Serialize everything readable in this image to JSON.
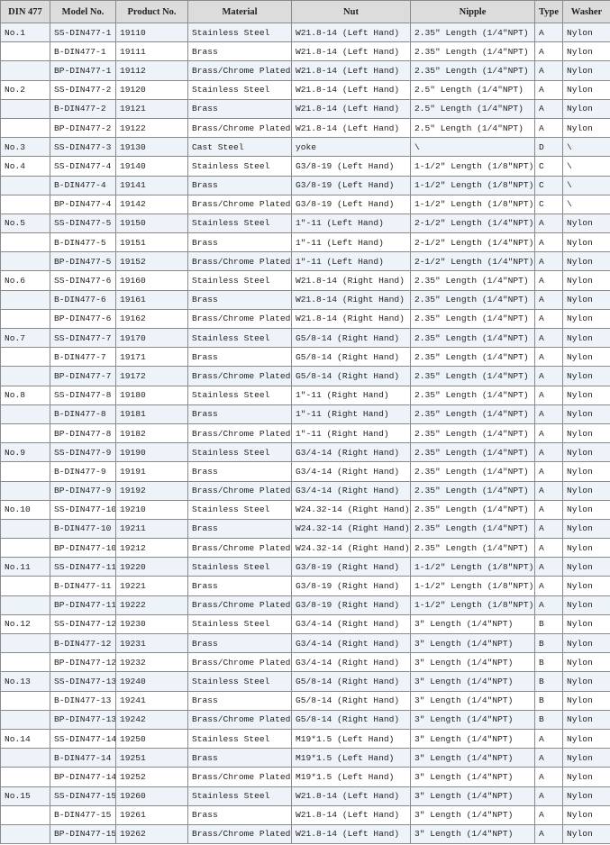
{
  "colors": {
    "header_bg": "#dcdcdc",
    "stripe_bg": "#eef3fa",
    "border": "#8a8a8a"
  },
  "table": {
    "headers": [
      "DIN 477",
      "Model No.",
      "Product No.",
      "Material",
      "Nut",
      "Nipple",
      "Type",
      "Washer"
    ],
    "rows": [
      [
        "No.1",
        "SS-DIN477-1",
        "19110",
        "Stainless Steel",
        "W21.8-14 (Left Hand)",
        "2.35\" Length (1/4\"NPT)",
        "A",
        "Nylon"
      ],
      [
        "",
        "B-DIN477-1",
        "19111",
        "Brass",
        "W21.8-14 (Left Hand)",
        "2.35\" Length (1/4\"NPT)",
        "A",
        "Nylon"
      ],
      [
        "",
        "BP-DIN477-1",
        "19112",
        "Brass/Chrome Plated",
        "W21.8-14 (Left Hand)",
        "2.35\" Length (1/4\"NPT)",
        "A",
        "Nylon"
      ],
      [
        "No.2",
        "SS-DIN477-2",
        "19120",
        "Stainless Steel",
        "W21.8-14 (Left Hand)",
        "2.5\" Length (1/4\"NPT)",
        "A",
        "Nylon"
      ],
      [
        "",
        "B-DIN477-2",
        "19121",
        "Brass",
        "W21.8-14 (Left Hand)",
        "2.5\" Length (1/4\"NPT)",
        "A",
        "Nylon"
      ],
      [
        "",
        "BP-DIN477-2",
        "19122",
        "Brass/Chrome Plated",
        "W21.8-14 (Left Hand)",
        "2.5\" Length (1/4\"NPT)",
        "A",
        "Nylon"
      ],
      [
        "No.3",
        "SS-DIN477-3",
        "19130",
        "Cast Steel",
        "yoke",
        "\\",
        "D",
        "\\"
      ],
      [
        "No.4",
        "SS-DIN477-4",
        "19140",
        "Stainless Steel",
        "G3/8-19 (Left Hand)",
        "1-1/2\" Length (1/8\"NPT)",
        "C",
        "\\"
      ],
      [
        "",
        "B-DIN477-4",
        "19141",
        "Brass",
        "G3/8-19 (Left Hand)",
        "1-1/2\" Length (1/8\"NPT)",
        "C",
        "\\"
      ],
      [
        "",
        "BP-DIN477-4",
        "19142",
        "Brass/Chrome Plated",
        "G3/8-19 (Left Hand)",
        "1-1/2\" Length (1/8\"NPT)",
        "C",
        "\\"
      ],
      [
        "No.5",
        "SS-DIN477-5",
        "19150",
        "Stainless Steel",
        "1\"-11 (Left Hand)",
        "2-1/2\" Length (1/4\"NPT)",
        "A",
        "Nylon"
      ],
      [
        "",
        "B-DIN477-5",
        "19151",
        "Brass",
        "1\"-11 (Left Hand)",
        "2-1/2\" Length (1/4\"NPT)",
        "A",
        "Nylon"
      ],
      [
        "",
        "BP-DIN477-5",
        "19152",
        "Brass/Chrome Plated",
        "1\"-11 (Left Hand)",
        "2-1/2\" Length (1/4\"NPT)",
        "A",
        "Nylon"
      ],
      [
        "No.6",
        "SS-DIN477-6",
        "19160",
        "Stainless Steel",
        "W21.8-14 (Right Hand)",
        "2.35\" Length (1/4\"NPT)",
        "A",
        "Nylon"
      ],
      [
        "",
        "B-DIN477-6",
        "19161",
        "Brass",
        "W21.8-14 (Right Hand)",
        "2.35\" Length (1/4\"NPT)",
        "A",
        "Nylon"
      ],
      [
        "",
        "BP-DIN477-6",
        "19162",
        "Brass/Chrome Plated",
        "W21.8-14 (Right Hand)",
        "2.35\" Length (1/4\"NPT)",
        "A",
        "Nylon"
      ],
      [
        "No.7",
        "SS-DIN477-7",
        "19170",
        "Stainless Steel",
        "G5/8-14 (Right Hand)",
        "2.35\" Length (1/4\"NPT)",
        "A",
        "Nylon"
      ],
      [
        "",
        "B-DIN477-7",
        "19171",
        "Brass",
        "G5/8-14 (Right Hand)",
        "2.35\" Length (1/4\"NPT)",
        "A",
        "Nylon"
      ],
      [
        "",
        "BP-DIN477-7",
        "19172",
        "Brass/Chrome Plated",
        "G5/8-14 (Right Hand)",
        "2.35\" Length (1/4\"NPT)",
        "A",
        "Nylon"
      ],
      [
        "No.8",
        "SS-DIN477-8",
        "19180",
        "Stainless Steel",
        "1\"-11 (Right Hand)",
        "2.35\" Length (1/4\"NPT)",
        "A",
        "Nylon"
      ],
      [
        "",
        "B-DIN477-8",
        "19181",
        "Brass",
        "1\"-11 (Right Hand)",
        "2.35\" Length (1/4\"NPT)",
        "A",
        "Nylon"
      ],
      [
        "",
        "BP-DIN477-8",
        "19182",
        "Brass/Chrome Plated",
        "1\"-11 (Right Hand)",
        "2.35\" Length (1/4\"NPT)",
        "A",
        "Nylon"
      ],
      [
        "No.9",
        "SS-DIN477-9",
        "19190",
        "Stainless Steel",
        "G3/4-14 (Right Hand)",
        "2.35\" Length (1/4\"NPT)",
        "A",
        "Nylon"
      ],
      [
        "",
        "B-DIN477-9",
        "19191",
        "Brass",
        "G3/4-14 (Right Hand)",
        "2.35\" Length (1/4\"NPT)",
        "A",
        "Nylon"
      ],
      [
        "",
        "BP-DIN477-9",
        "19192",
        "Brass/Chrome Plated",
        "G3/4-14 (Right Hand)",
        "2.35\" Length (1/4\"NPT)",
        "A",
        "Nylon"
      ],
      [
        "No.10",
        "SS-DIN477-10",
        "19210",
        "Stainless Steel",
        "W24.32-14 (Right Hand)",
        "2.35\" Length (1/4\"NPT)",
        "A",
        "Nylon"
      ],
      [
        "",
        "B-DIN477-10",
        "19211",
        "Brass",
        "W24.32-14 (Right Hand)",
        "2.35\" Length (1/4\"NPT)",
        "A",
        "Nylon"
      ],
      [
        "",
        "BP-DIN477-10",
        "19212",
        "Brass/Chrome Plated",
        "W24.32-14 (Right Hand)",
        "2.35\" Length (1/4\"NPT)",
        "A",
        "Nylon"
      ],
      [
        "No.11",
        "SS-DIN477-11",
        "19220",
        "Stainless Steel",
        "G3/8-19 (Right Hand)",
        "1-1/2\" Length (1/8\"NPT)",
        "A",
        "Nylon"
      ],
      [
        "",
        "B-DIN477-11",
        "19221",
        "Brass",
        "G3/8-19 (Right Hand)",
        "1-1/2\" Length (1/8\"NPT)",
        "A",
        "Nylon"
      ],
      [
        "",
        "BP-DIN477-11",
        "19222",
        "Brass/Chrome Plated",
        "G3/8-19 (Right Hand)",
        "1-1/2\" Length (1/8\"NPT)",
        "A",
        "Nylon"
      ],
      [
        "No.12",
        "SS-DIN477-12",
        "19230",
        "Stainless Steel",
        "G3/4-14 (Right Hand)",
        "3\" Length (1/4\"NPT)",
        "B",
        "Nylon"
      ],
      [
        "",
        "B-DIN477-12",
        "19231",
        "Brass",
        "G3/4-14 (Right Hand)",
        "3\" Length (1/4\"NPT)",
        "B",
        "Nylon"
      ],
      [
        "",
        "BP-DIN477-12",
        "19232",
        "Brass/Chrome Plated",
        "G3/4-14 (Right Hand)",
        "3\" Length (1/4\"NPT)",
        "B",
        "Nylon"
      ],
      [
        "No.13",
        "SS-DIN477-13",
        "19240",
        "Stainless Steel",
        "G5/8-14 (Right Hand)",
        "3\" Length (1/4\"NPT)",
        "B",
        "Nylon"
      ],
      [
        "",
        "B-DIN477-13",
        "19241",
        "Brass",
        "G5/8-14 (Right Hand)",
        "3\" Length (1/4\"NPT)",
        "B",
        "Nylon"
      ],
      [
        "",
        "BP-DIN477-13",
        "19242",
        "Brass/Chrome Plated",
        "G5/8-14 (Right Hand)",
        "3\" Length (1/4\"NPT)",
        "B",
        "Nylon"
      ],
      [
        "No.14",
        "SS-DIN477-14",
        "19250",
        "Stainless Steel",
        "M19*1.5 (Left Hand)",
        "3\" Length (1/4\"NPT)",
        "A",
        "Nylon"
      ],
      [
        "",
        "B-DIN477-14",
        "19251",
        "Brass",
        "M19*1.5 (Left Hand)",
        "3\" Length (1/4\"NPT)",
        "A",
        "Nylon"
      ],
      [
        "",
        "BP-DIN477-14",
        "19252",
        "Brass/Chrome Plated",
        "M19*1.5 (Left Hand)",
        "3\" Length (1/4\"NPT)",
        "A",
        "Nylon"
      ],
      [
        "No.15",
        "SS-DIN477-15",
        "19260",
        "Stainless Steel",
        "W21.8-14 (Left Hand)",
        "3\" Length (1/4\"NPT)",
        "A",
        "Nylon"
      ],
      [
        "",
        "B-DIN477-15",
        "19261",
        "Brass",
        "W21.8-14 (Left Hand)",
        "3\" Length (1/4\"NPT)",
        "A",
        "Nylon"
      ],
      [
        "",
        "BP-DIN477-15",
        "19262",
        "Brass/Chrome Plated",
        "W21.8-14 (Left Hand)",
        "3\" Length (1/4\"NPT)",
        "A",
        "Nylon"
      ]
    ]
  }
}
